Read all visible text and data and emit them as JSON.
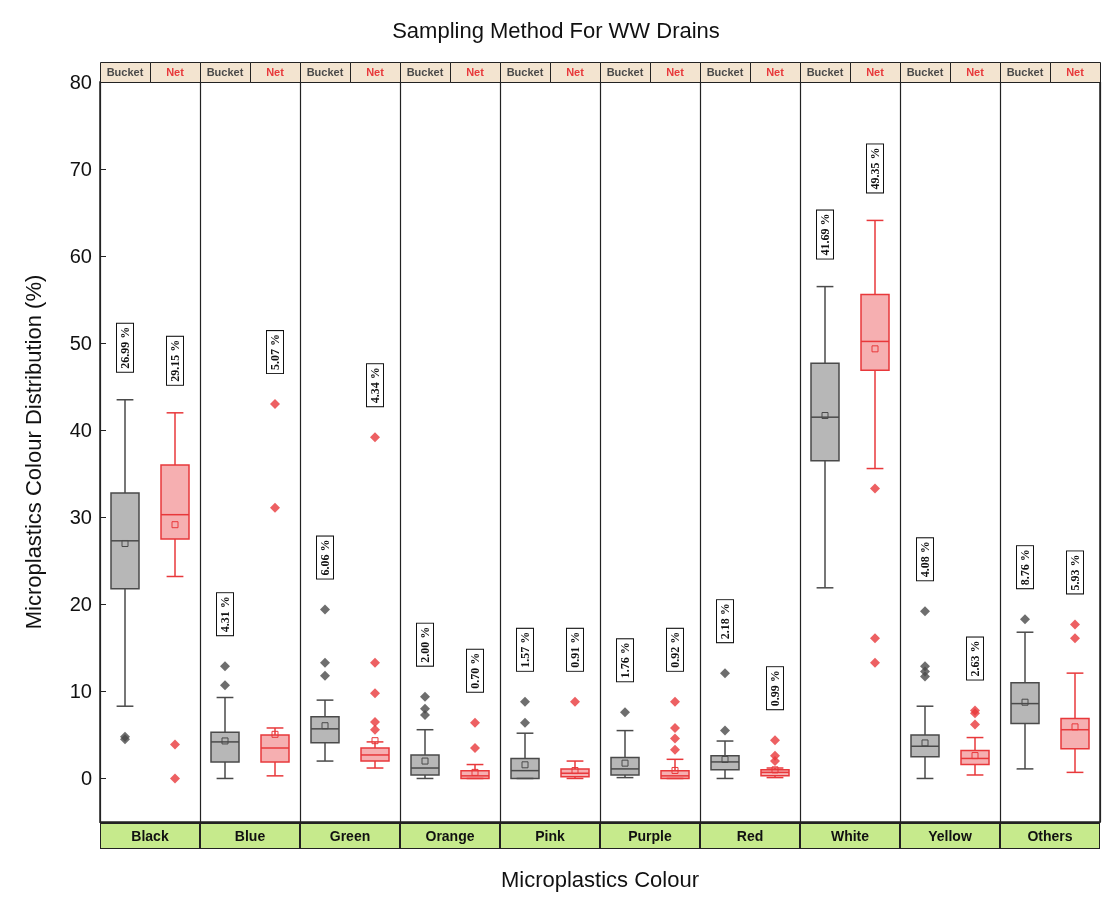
{
  "chart_data": {
    "type": "box",
    "title": "Sampling Method For WW Drains",
    "xlabel": "Microplastics Colour",
    "ylabel": "Microplastics Colour Distribution (%)",
    "categories": [
      "Black",
      "Blue",
      "Green",
      "Orange",
      "Pink",
      "Purple",
      "Red",
      "White",
      "Yellow",
      "Others"
    ],
    "ylim": [
      -5,
      80
    ],
    "yticks": [
      0,
      10,
      20,
      30,
      40,
      50,
      60,
      70,
      80
    ],
    "grid": "x",
    "marker": "diamond",
    "series": [
      {
        "name": "Bucket",
        "color": "#4a4a4a",
        "value_labels": [
          "26.99 %",
          "4.31 %",
          "6.06 %",
          "2.00 %",
          "1.57 %",
          "1.76 %",
          "2.18 %",
          "41.69 %",
          "4.08 %",
          "8.76 %"
        ],
        "boxes": [
          {
            "low": 8.3,
            "q1": 21.8,
            "median": 27.3,
            "q3": 32.8,
            "high": 43.5,
            "mean": 26.99,
            "outliers": [
              4.5,
              4.8
            ]
          },
          {
            "low": 0,
            "q1": 1.9,
            "median": 4.2,
            "q3": 5.3,
            "high": 9.3,
            "mean": 4.31,
            "outliers": [
              10.7,
              12.9
            ]
          },
          {
            "low": 2,
            "q1": 4.1,
            "median": 5.7,
            "q3": 7.1,
            "high": 9,
            "mean": 6.06,
            "outliers": [
              11.8,
              13.3,
              19.4
            ]
          },
          {
            "low": 0,
            "q1": 0.4,
            "median": 1.2,
            "q3": 2.7,
            "high": 5.6,
            "mean": 2.0,
            "outliers": [
              7.3,
              8.0,
              9.4
            ]
          },
          {
            "low": 0,
            "q1": 0,
            "median": 0.9,
            "q3": 2.3,
            "high": 5.2,
            "mean": 1.57,
            "outliers": [
              6.4,
              8.8
            ]
          },
          {
            "low": 0.1,
            "q1": 0.4,
            "median": 1.1,
            "q3": 2.4,
            "high": 5.5,
            "mean": 1.76,
            "outliers": [
              7.6
            ]
          },
          {
            "low": 0,
            "q1": 1.0,
            "median": 1.9,
            "q3": 2.6,
            "high": 4.3,
            "mean": 2.18,
            "outliers": [
              5.5,
              12.1
            ]
          },
          {
            "low": 21.9,
            "q1": 36.5,
            "median": 41.5,
            "q3": 47.7,
            "high": 56.5,
            "mean": 41.69
          },
          {
            "low": 0,
            "q1": 2.5,
            "median": 3.7,
            "q3": 5,
            "high": 8.3,
            "mean": 4.08,
            "outliers": [
              11.7,
              12.3,
              12.9,
              19.2
            ]
          },
          {
            "low": 1.1,
            "q1": 6.3,
            "median": 8.6,
            "q3": 11,
            "high": 16.8,
            "mean": 8.76,
            "outliers": [
              18.3
            ]
          }
        ]
      },
      {
        "name": "Net",
        "color": "#e8383b",
        "value_labels": [
          "29.15 %",
          "5.07 %",
          "4.34 %",
          "0.70 %",
          "0.91 %",
          "0.92 %",
          "0.99 %",
          "49.35 %",
          "2.63 %",
          "5.93 %"
        ],
        "boxes": [
          {
            "low": 23.2,
            "q1": 27.5,
            "median": 30.3,
            "q3": 36,
            "high": 42,
            "mean": 29.15,
            "outliers": [
              3.9,
              0
            ]
          },
          {
            "low": 0.3,
            "q1": 1.9,
            "median": 3.5,
            "q3": 5.0,
            "high": 5.8,
            "mean": 5.07,
            "outliers": [
              31.1,
              43
            ]
          },
          {
            "low": 1.2,
            "q1": 2.0,
            "median": 2.7,
            "q3": 3.5,
            "high": 4.2,
            "mean": 4.34,
            "outliers": [
              5.6,
              6.5,
              9.8,
              13.3,
              39.2
            ]
          },
          {
            "low": 0,
            "q1": 0,
            "median": 0.3,
            "q3": 0.9,
            "high": 1.6,
            "mean": 0.7,
            "outliers": [
              3.5,
              6.4
            ]
          },
          {
            "low": 0,
            "q1": 0.2,
            "median": 0.6,
            "q3": 1.1,
            "high": 2.0,
            "mean": 0.91,
            "outliers": [
              8.8
            ]
          },
          {
            "low": 0,
            "q1": 0,
            "median": 0.3,
            "q3": 0.9,
            "high": 2.2,
            "mean": 0.92,
            "outliers": [
              3.3,
              4.6,
              5.8,
              8.8
            ]
          },
          {
            "low": 0.1,
            "q1": 0.3,
            "median": 0.7,
            "q3": 1.0,
            "high": 1.2,
            "mean": 0.99,
            "outliers": [
              2.0,
              2.6,
              4.4
            ]
          },
          {
            "low": 35.6,
            "q1": 46.9,
            "median": 50.2,
            "q3": 55.6,
            "high": 64.1,
            "mean": 49.35,
            "outliers": [
              33.3,
              16.1,
              13.3
            ]
          },
          {
            "low": 0.4,
            "q1": 1.6,
            "median": 2.3,
            "q3": 3.2,
            "high": 4.7,
            "mean": 2.63,
            "outliers": [
              6.2,
              7.5,
              7.8
            ]
          },
          {
            "low": 0.7,
            "q1": 3.4,
            "median": 5.6,
            "q3": 6.9,
            "high": 12.1,
            "mean": 5.93,
            "outliers": [
              16.1,
              17.7
            ]
          }
        ]
      }
    ]
  }
}
